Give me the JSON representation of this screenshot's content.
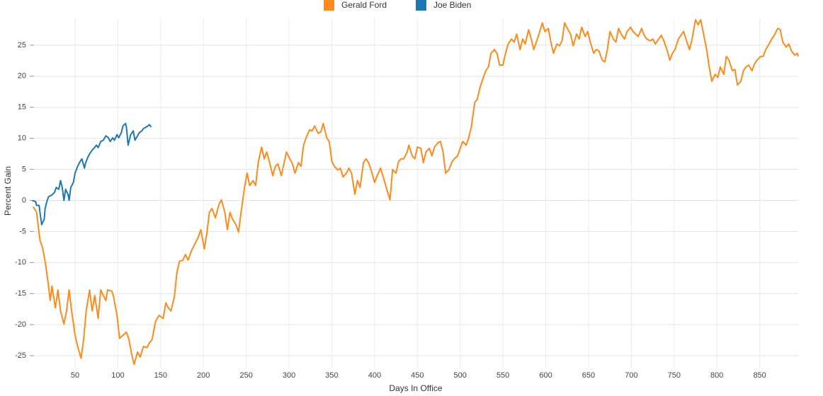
{
  "chart_data": {
    "type": "line",
    "x_label": "Days In Office",
    "y_label": "Percent Gain",
    "xlim": [
      0,
      895
    ],
    "ylim": [
      -27,
      30
    ],
    "xticks": [
      50,
      100,
      150,
      200,
      250,
      300,
      350,
      400,
      450,
      500,
      550,
      600,
      650,
      700,
      750,
      800,
      850
    ],
    "yticks": [
      -25,
      -20,
      -15,
      -10,
      -5,
      0,
      5,
      10,
      15,
      20,
      25
    ],
    "grid": true,
    "legend": "top",
    "series": [
      {
        "name": "Gerald Ford",
        "color": "#ff8a1c",
        "x": [
          1,
          5,
          9,
          12,
          15,
          18,
          21,
          23,
          27,
          30,
          33,
          37,
          40,
          43,
          46,
          50,
          53,
          57,
          60,
          63,
          67,
          70,
          73,
          77,
          80,
          83,
          86,
          88,
          93,
          95,
          99,
          102,
          106,
          110,
          113,
          116,
          119,
          123,
          126,
          130,
          134,
          137,
          140,
          144,
          148,
          153,
          156,
          159,
          162,
          166,
          169,
          172,
          176,
          179,
          182,
          186,
          190,
          194,
          197,
          201,
          204,
          207,
          210,
          214,
          218,
          221,
          225,
          228,
          231,
          234,
          238,
          241,
          244,
          248,
          251,
          254,
          258,
          261,
          264,
          268,
          271,
          274,
          277,
          281,
          284,
          287,
          291,
          294,
          297,
          301,
          304,
          307,
          311,
          314,
          317,
          320,
          324,
          327,
          330,
          334,
          337,
          340,
          344,
          347,
          350,
          353,
          357,
          360,
          363,
          367,
          370,
          373,
          377,
          380,
          383,
          387,
          390,
          393,
          397,
          400,
          403,
          407,
          410,
          413,
          416,
          418,
          421,
          425,
          428,
          431,
          434,
          438,
          440,
          444,
          447,
          450,
          454,
          457,
          460,
          464,
          467,
          470,
          474,
          477,
          480,
          483,
          487,
          490,
          493,
          497,
          500,
          503,
          507,
          510,
          513,
          517,
          520,
          523,
          527,
          530,
          533,
          536,
          540,
          543,
          546,
          550,
          553,
          556,
          560,
          563,
          566,
          570,
          573,
          576,
          580,
          583,
          586,
          589,
          593,
          596,
          599,
          603,
          606,
          609,
          613,
          616,
          619,
          622,
          626,
          629,
          632,
          636,
          639,
          642,
          646,
          649,
          652,
          656,
          659,
          662,
          666,
          669,
          672,
          675,
          679,
          682,
          685,
          689,
          692,
          695,
          699,
          702,
          705,
          708,
          712,
          715,
          718,
          722,
          725,
          728,
          732,
          735,
          738,
          742,
          745,
          748,
          751,
          755,
          758,
          761,
          765,
          768,
          771,
          775,
          778,
          781,
          785,
          788,
          791,
          794,
          798,
          801,
          804,
          808,
          811,
          814,
          818,
          821,
          824,
          828,
          831,
          834,
          837,
          841,
          844,
          847,
          851,
          854,
          857,
          861,
          864,
          867,
          871,
          874,
          877,
          881,
          884,
          887,
          891,
          894,
          895
        ],
        "values": [
          -1.0,
          -1.9,
          -6.4,
          -7.6,
          -9.8,
          -12.7,
          -16.1,
          -13.8,
          -17.3,
          -14.4,
          -17.8,
          -19.9,
          -17.8,
          -14.4,
          -17.8,
          -21.7,
          -23.5,
          -25.4,
          -22.4,
          -17.8,
          -14.4,
          -17.8,
          -15.3,
          -19.0,
          -14.4,
          -15.3,
          -16.1,
          -14.4,
          -14.6,
          -15.5,
          -18.5,
          -22.2,
          -21.7,
          -21.2,
          -22.4,
          -24.7,
          -26.4,
          -24.4,
          -25.2,
          -23.5,
          -23.7,
          -22.9,
          -22.4,
          -19.5,
          -18.5,
          -19.0,
          -16.5,
          -17.3,
          -17.8,
          -15.5,
          -11.6,
          -9.8,
          -9.6,
          -8.7,
          -9.6,
          -8.1,
          -7.0,
          -5.9,
          -4.7,
          -7.8,
          -5.3,
          -1.9,
          -1.3,
          -2.8,
          -0.7,
          0.1,
          -1.9,
          -4.7,
          -1.9,
          -3.0,
          -3.9,
          -5.1,
          -1.9,
          2.1,
          4.4,
          2.4,
          3.2,
          2.4,
          6.1,
          8.6,
          6.7,
          7.8,
          6.3,
          4.0,
          5.5,
          5.9,
          4.0,
          5.9,
          7.8,
          6.7,
          5.9,
          4.4,
          6.1,
          5.5,
          8.9,
          10.1,
          11.4,
          11.2,
          12.0,
          10.8,
          11.0,
          12.4,
          10.1,
          9.5,
          6.3,
          5.5,
          4.9,
          5.2,
          3.8,
          4.4,
          5.2,
          4.4,
          1.0,
          3.2,
          2.1,
          6.1,
          6.7,
          6.1,
          4.4,
          2.9,
          4.0,
          5.2,
          3.8,
          2.4,
          1.0,
          0.1,
          5.0,
          4.4,
          6.3,
          6.7,
          6.7,
          7.8,
          8.9,
          7.2,
          6.7,
          8.6,
          8.4,
          6.1,
          7.8,
          8.4,
          7.2,
          8.6,
          9.3,
          9.5,
          7.8,
          4.4,
          5.0,
          6.1,
          6.7,
          7.2,
          8.4,
          9.5,
          8.9,
          10.1,
          11.8,
          15.8,
          16.3,
          18.1,
          19.8,
          20.9,
          21.5,
          23.7,
          24.3,
          23.7,
          21.8,
          21.8,
          23.7,
          25.2,
          26.0,
          25.5,
          26.8,
          24.3,
          26.0,
          25.2,
          27.5,
          26.0,
          24.3,
          25.5,
          27.2,
          28.6,
          27.2,
          27.7,
          25.5,
          23.7,
          25.2,
          24.9,
          25.7,
          28.6,
          27.5,
          26.8,
          24.9,
          26.8,
          26.0,
          27.9,
          26.4,
          27.2,
          25.5,
          23.7,
          24.3,
          24.1,
          22.6,
          22.3,
          24.3,
          27.2,
          26.0,
          25.5,
          27.7,
          26.6,
          26.0,
          27.2,
          27.9,
          27.2,
          26.8,
          26.4,
          27.7,
          26.6,
          26.0,
          25.7,
          26.0,
          25.2,
          26.0,
          26.6,
          25.7,
          24.1,
          22.6,
          23.7,
          24.3,
          26.0,
          26.6,
          27.2,
          25.5,
          24.3,
          26.0,
          29.1,
          28.3,
          29.1,
          26.4,
          24.3,
          21.5,
          19.2,
          20.3,
          19.8,
          21.5,
          20.3,
          23.2,
          22.6,
          20.9,
          21.1,
          18.6,
          19.2,
          20.9,
          21.5,
          21.8,
          20.9,
          22.0,
          22.6,
          23.2,
          23.2,
          24.3,
          25.2,
          26.0,
          26.6,
          27.7,
          27.5,
          25.5,
          24.7,
          25.2,
          24.1,
          23.4,
          23.7,
          23.2
        ]
      },
      {
        "name": "Joe Biden",
        "color": "#1f77b4",
        "x": [
          0,
          4,
          5,
          8,
          9,
          11,
          14,
          15,
          17,
          19,
          23,
          26,
          28,
          31,
          33,
          35,
          37,
          39,
          42,
          43,
          45,
          48,
          50,
          53,
          56,
          58,
          61,
          62,
          65,
          67,
          70,
          72,
          75,
          77,
          80,
          83,
          86,
          89,
          91,
          94,
          96,
          99,
          101,
          104,
          106,
          109,
          110,
          112,
          115,
          118,
          120,
          123,
          125,
          128,
          130,
          133,
          135,
          137,
          139
        ],
        "values": [
          0.0,
          -0.2,
          -0.8,
          -0.8,
          -1.9,
          -3.9,
          -3.0,
          -1.3,
          -0.2,
          0.6,
          0.9,
          1.3,
          2.1,
          1.8,
          3.2,
          2.1,
          0.0,
          1.8,
          0.9,
          0.0,
          2.1,
          2.9,
          4.4,
          5.5,
          6.3,
          6.7,
          5.2,
          5.9,
          7.0,
          7.5,
          8.1,
          8.4,
          8.9,
          8.5,
          9.5,
          9.7,
          10.4,
          10.1,
          9.5,
          10.1,
          9.7,
          10.6,
          10.1,
          10.9,
          12.0,
          12.4,
          11.8,
          8.9,
          10.6,
          11.2,
          9.7,
          10.4,
          10.9,
          11.2,
          11.6,
          11.8,
          12.0,
          12.2,
          11.8
        ]
      }
    ]
  }
}
